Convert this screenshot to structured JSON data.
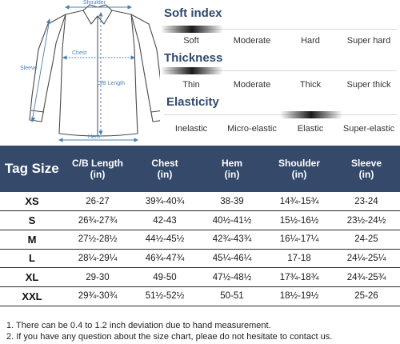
{
  "diagram": {
    "shoulder_label": "Shoulder",
    "chest_label": "Chest",
    "sleeve_label": "Sleeve",
    "cb_length_label": "C/B Length",
    "hem_label": "Hem",
    "accent_color": "#4a7fb5"
  },
  "properties": [
    {
      "title": "Soft index",
      "options": [
        "Soft",
        "Moderate",
        "Hard",
        "Super hard"
      ],
      "selected": "Soft"
    },
    {
      "title": "Thickness",
      "options": [
        "Thin",
        "Moderate",
        "Thick",
        "Super thick"
      ],
      "selected": "Thin"
    },
    {
      "title": "Elasticity",
      "options": [
        "Inelastic",
        "Micro-elastic",
        "Elastic",
        "Super-elastic"
      ],
      "selected": "Elastic"
    }
  ],
  "table": {
    "header_color": "#35496b",
    "columns": [
      {
        "name": "Tag Size",
        "unit": ""
      },
      {
        "name": "C/B Length",
        "unit": "(in)"
      },
      {
        "name": "Chest",
        "unit": "(in)"
      },
      {
        "name": "Hem",
        "unit": "(in)"
      },
      {
        "name": "Shoulder",
        "unit": "(in)"
      },
      {
        "name": "Sleeve",
        "unit": "(in)"
      }
    ],
    "rows": [
      [
        "XS",
        "26-27",
        "39¾-40¾",
        "38-39",
        "14¾-15¾",
        "23-24"
      ],
      [
        "S",
        "26¾-27¾",
        "42-43",
        "40½-41½",
        "15½-16½",
        "23½-24½"
      ],
      [
        "M",
        "27½-28½",
        "44½-45½",
        "42¾-43¾",
        "16¼-17¼",
        "24-25"
      ],
      [
        "L",
        "28¼-29¼",
        "46¾-47¾",
        "45¼-46¼",
        "17-18",
        "24¼-25¼"
      ],
      [
        "XL",
        "29-30",
        "49-50",
        "47½-48½",
        "17¾-18¾",
        "24¾-25¾"
      ],
      [
        "XXL",
        "29¾-30¾",
        "51½-52½",
        "50-51",
        "18½-19½",
        "25-26"
      ]
    ]
  },
  "notes": [
    "1. There can be 0.4 to 1.2 inch deviation due to hand measurement.",
    "2. If you have any question about the size chart, pleae do not hesitate to contact us."
  ]
}
